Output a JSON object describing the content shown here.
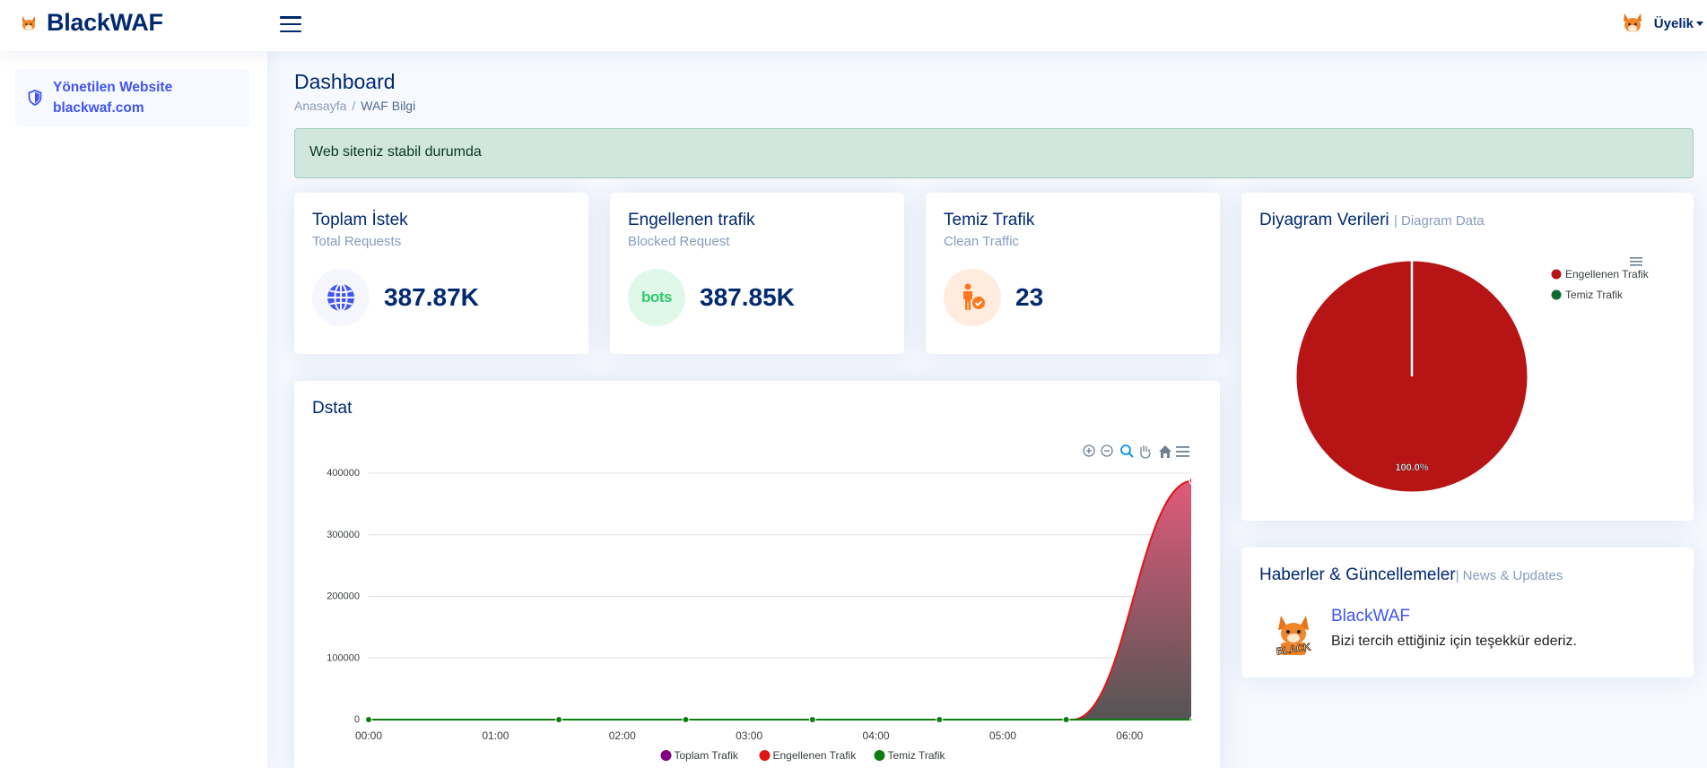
{
  "header": {
    "brand": "BlackWAF",
    "member_label": "Üyelik"
  },
  "sidebar": {
    "item_label": "Yönetilen Website",
    "item_domain": "blackwaf.com"
  },
  "page": {
    "title": "Dashboard",
    "breadcrumb": [
      "Anasayfa",
      "WAF Bilgi"
    ]
  },
  "alert": {
    "text": "Web siteniz stabil durumda"
  },
  "stats": [
    {
      "title": "Toplam İstek",
      "subtitle": "Total Requests",
      "value": "387.87K",
      "icon": "globe-icon",
      "bg": "#f6f6fe",
      "color": "#4154f1"
    },
    {
      "title": "Engellenen trafik",
      "subtitle": "Blocked Request",
      "value": "387.85K",
      "icon": "bots-icon",
      "bg": "#e0f8e9",
      "color": "#2eca6a",
      "icon_text": "bots"
    },
    {
      "title": "Temiz Trafik",
      "subtitle": "Clean Traffic",
      "value": "23",
      "icon": "person-check-icon",
      "bg": "#ffecdf",
      "color": "#ff771d"
    }
  ],
  "pie": {
    "title": "Diyagram Verileri",
    "title_small": "| Diagram Data"
  },
  "news": {
    "title": "Haberler & Güncellemeler",
    "title_small": "| News & Updates",
    "item_title": "BlackWAF",
    "item_text": "Bizi tercih ettiğiniz için teşekkür ederiz.",
    "logo_text": "BLACK"
  },
  "dstat": {
    "title": "Dstat"
  },
  "chart_data": [
    {
      "type": "pie",
      "slices": [
        {
          "label": "Engellenen Trafik",
          "value": 387850,
          "color": "#b71415"
        },
        {
          "label": "Temiz Trafik",
          "value": 23,
          "color": "#0e6b30"
        }
      ],
      "data_label": "100.0%",
      "legend": "right"
    },
    {
      "type": "area",
      "x_labels": [
        "00:00",
        "01:00",
        "02:00",
        "03:00",
        "04:00",
        "05:00",
        "06:00"
      ],
      "y_ticks": [
        "0",
        "100000",
        "200000",
        "300000",
        "400000"
      ],
      "ylim": [
        0,
        400000
      ],
      "xlim_hours": [
        0,
        6.5
      ],
      "series": [
        {
          "name": "Toplam Trafik",
          "color": "#800080"
        },
        {
          "name": "Engellenen Trafik",
          "color": "#e01515",
          "points": [
            [
              5.55,
              0
            ],
            [
              6.5,
              387850
            ]
          ]
        },
        {
          "name": "Temiz Trafik",
          "color": "#0e7d10",
          "points": [
            [
              0,
              0
            ],
            [
              1.5,
              0
            ],
            [
              2.5,
              0
            ],
            [
              3.5,
              0
            ],
            [
              4.5,
              0
            ],
            [
              5.5,
              0
            ],
            [
              6.5,
              0
            ]
          ]
        }
      ],
      "legend": "bottom"
    }
  ]
}
